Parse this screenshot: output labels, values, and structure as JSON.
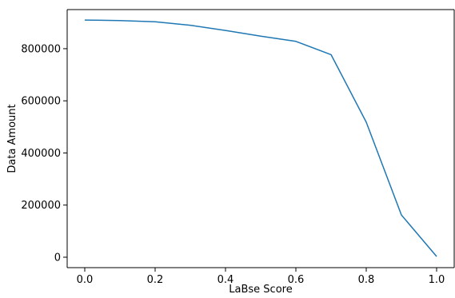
{
  "chart_data": {
    "type": "line",
    "title": "",
    "xlabel": "LaBse Score",
    "ylabel": "Data Amount",
    "xlim": [
      -0.05,
      1.05
    ],
    "ylim": [
      -40000,
      950000
    ],
    "x_ticks": [
      0.0,
      0.2,
      0.4,
      0.6,
      0.8,
      1.0
    ],
    "x_tick_labels": [
      "0.0",
      "0.2",
      "0.4",
      "0.6",
      "0.8",
      "1.0"
    ],
    "y_ticks": [
      0,
      200000,
      400000,
      600000,
      800000
    ],
    "y_tick_labels": [
      "0",
      "200000",
      "400000",
      "600000",
      "800000"
    ],
    "grid": false,
    "series": [
      {
        "x": [
          0.0,
          0.1,
          0.2,
          0.3,
          0.4,
          0.5,
          0.6,
          0.7,
          0.8,
          0.9,
          1.0
        ],
        "values": [
          910000,
          908000,
          903000,
          890000,
          870000,
          848000,
          828000,
          777000,
          518000,
          162000,
          3000
        ],
        "color": "#1f77b4"
      }
    ]
  }
}
